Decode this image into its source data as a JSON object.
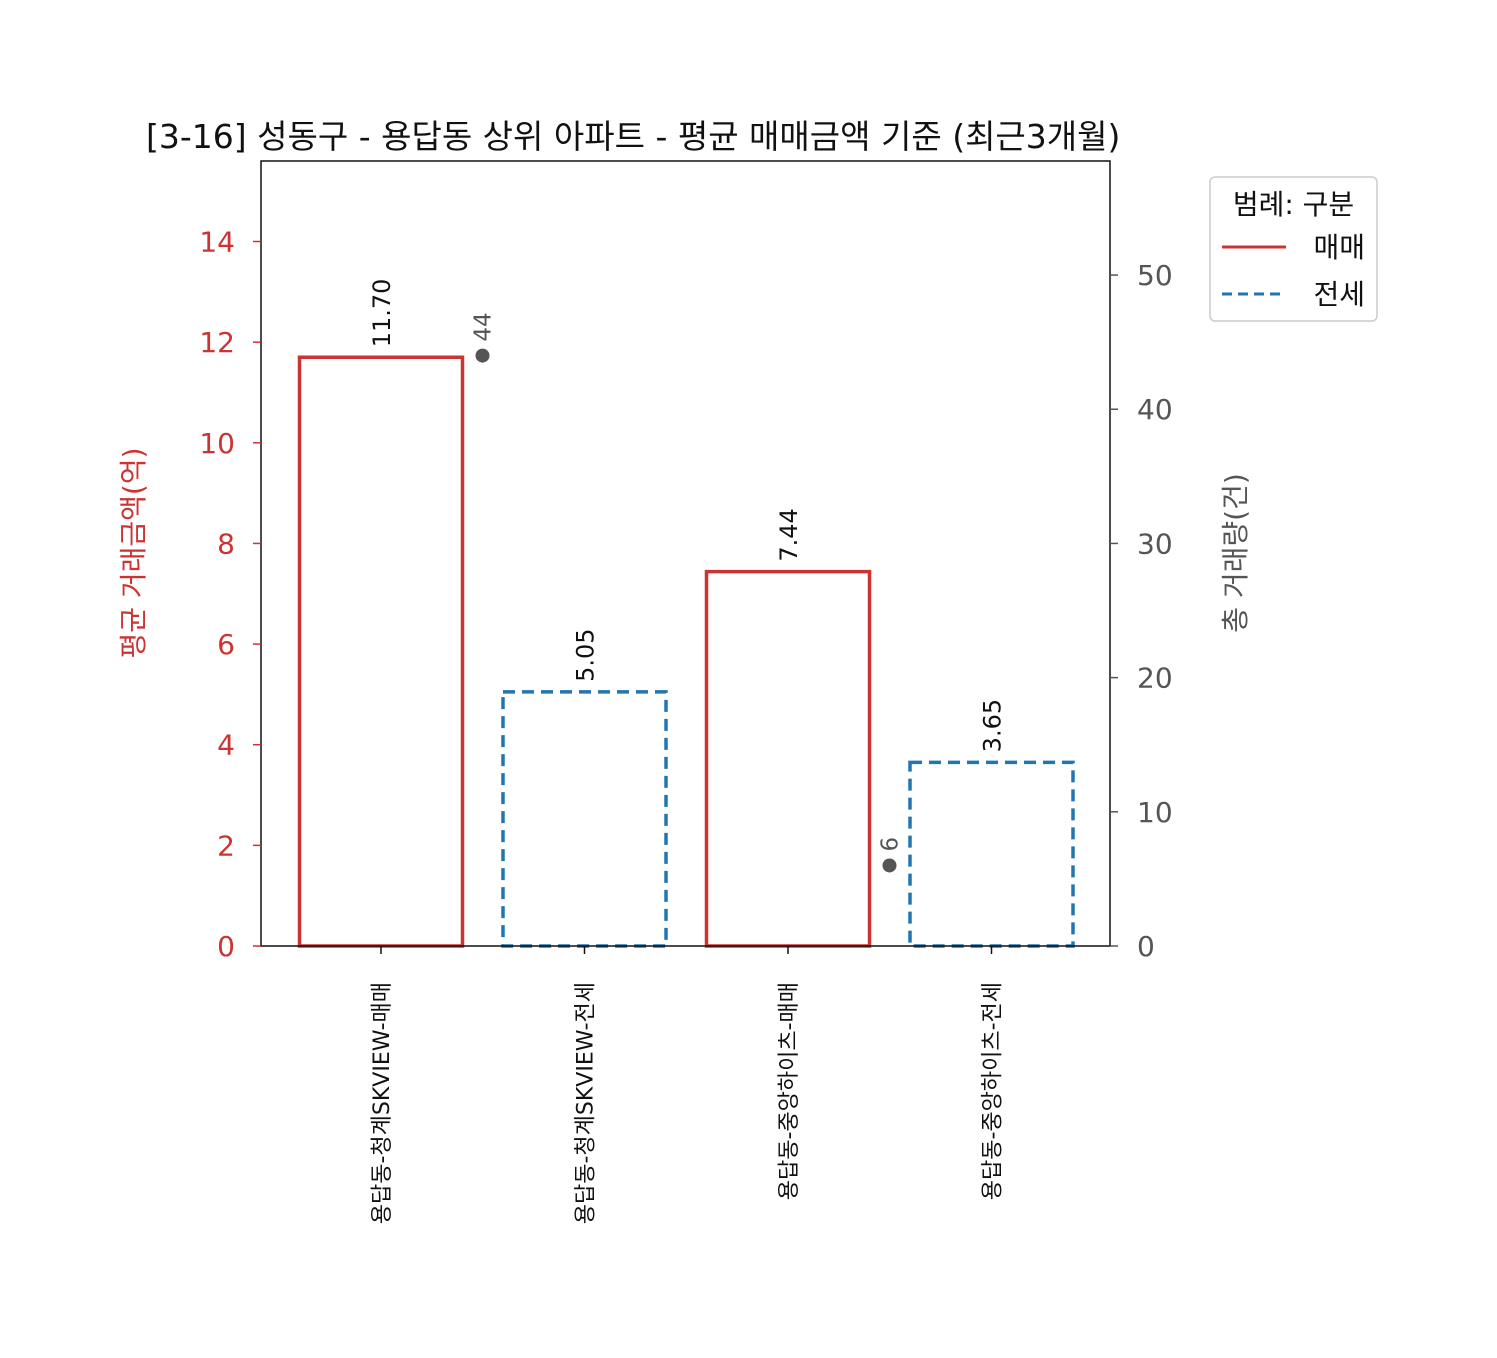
{
  "chart_data": {
    "type": "bar",
    "title": "[3-16] 성동구 - 용답동 상위 아파트 - 평균 매매금액 기준 (최근3개월)",
    "categories": [
      "용답동-청계SKVIEW-매매",
      "용답동-청계SKVIEW-전세",
      "용답동-중앙하이츠-매매",
      "용답동-중앙하이츠-전세"
    ],
    "bar_kind": [
      "매매",
      "전세",
      "매매",
      "전세"
    ],
    "values": [
      11.7,
      5.05,
      7.44,
      3.65
    ],
    "value_labels": [
      "11.70",
      "5.05",
      "7.44",
      "3.65"
    ],
    "counts": [
      {
        "category_index": 0,
        "value": 44,
        "label": "44"
      },
      {
        "category_index": 2,
        "value": 6,
        "label": "6"
      }
    ],
    "ylabel": "평균 거래금액(억)",
    "ylim": [
      0,
      15.6
    ],
    "yticks": [
      0,
      2,
      4,
      6,
      8,
      10,
      12,
      14
    ],
    "y2label": "총 거래량(건)",
    "y2lim": [
      0,
      58.5
    ],
    "y2ticks": [
      0,
      10,
      20,
      30,
      40,
      50
    ],
    "legend": {
      "title": "범례: 구분",
      "placement": "outside-top-right",
      "entries": [
        {
          "label": "매매",
          "color": "#cc3333",
          "style": "solid"
        },
        {
          "label": "전세",
          "color": "#2276b0",
          "style": "dashed"
        }
      ]
    },
    "colors": {
      "sale": "#cc3333",
      "jeonse": "#2276b0",
      "left_axis": "#cc3333",
      "right_axis": "#555555",
      "count_marker": "#555555"
    },
    "grid": false
  }
}
